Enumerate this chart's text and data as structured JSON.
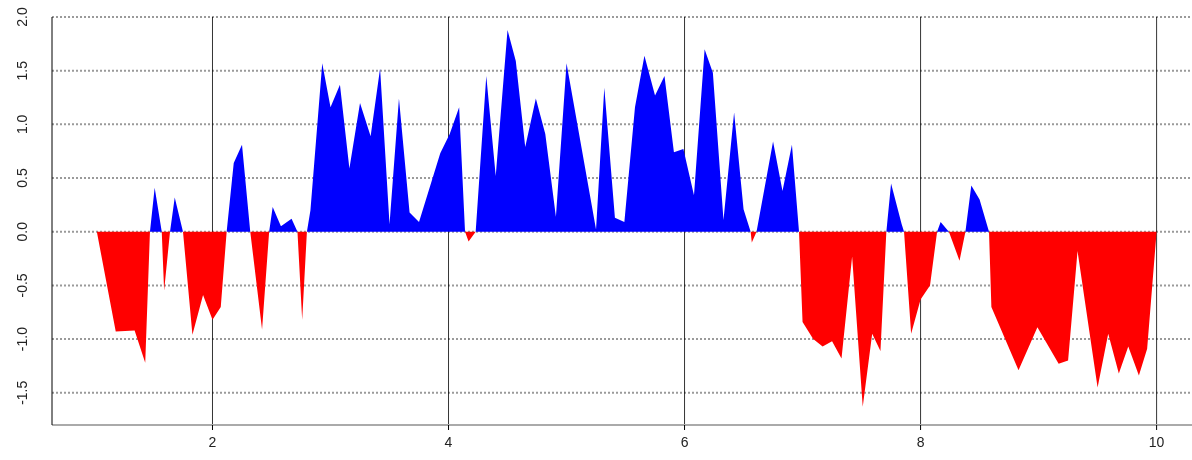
{
  "chart_data": {
    "type": "area",
    "x": [
      1.02,
      1.18,
      1.34,
      1.43,
      1.47,
      1.51,
      1.57,
      1.59,
      1.64,
      1.68,
      1.75,
      1.83,
      1.92,
      2.0,
      2.07,
      2.12,
      2.18,
      2.25,
      2.32,
      2.42,
      2.48,
      2.51,
      2.58,
      2.67,
      2.72,
      2.76,
      2.8,
      2.83,
      2.93,
      3.0,
      3.08,
      3.16,
      3.25,
      3.34,
      3.42,
      3.5,
      3.58,
      3.67,
      3.75,
      3.93,
      4.01,
      4.09,
      4.14,
      4.17,
      4.23,
      4.32,
      4.4,
      4.5,
      4.57,
      4.65,
      4.74,
      4.82,
      4.91,
      5.0,
      5.25,
      5.32,
      5.41,
      5.49,
      5.58,
      5.66,
      5.75,
      5.83,
      5.91,
      5.99,
      6.08,
      6.17,
      6.24,
      6.33,
      6.42,
      6.5,
      6.56,
      6.57,
      6.61,
      6.75,
      6.83,
      6.91,
      6.97,
      7.0,
      7.09,
      7.17,
      7.25,
      7.33,
      7.42,
      7.51,
      7.59,
      7.66,
      7.71,
      7.75,
      7.84,
      7.86,
      7.92,
      8.0,
      8.08,
      8.14,
      8.17,
      8.24,
      8.33,
      8.38,
      8.43,
      8.5,
      8.58,
      8.6,
      8.83,
      8.99,
      9.17,
      9.25,
      9.33,
      9.5,
      9.59,
      9.68,
      9.76,
      9.85,
      9.92,
      10.0
    ],
    "series": [
      {
        "color": "#0000ff",
        "values": [
          0,
          0,
          0,
          0,
          0,
          0.41,
          0,
          0,
          0,
          0.32,
          0,
          0,
          0,
          0,
          0,
          0,
          0.64,
          0.81,
          0,
          0,
          0,
          0.23,
          0.05,
          0.12,
          0,
          0,
          0,
          0.2,
          1.57,
          1.16,
          1.37,
          0.59,
          1.2,
          0.89,
          1.52,
          0.07,
          1.24,
          0.18,
          0.09,
          0.73,
          0.91,
          1.16,
          0,
          0,
          0,
          1.45,
          0.52,
          1.88,
          1.59,
          0.79,
          1.24,
          0.91,
          0.14,
          1.57,
          0.02,
          1.34,
          0.13,
          0.09,
          1.16,
          1.64,
          1.27,
          1.45,
          0.74,
          0.77,
          0.34,
          1.7,
          1.48,
          0.11,
          1.11,
          0.21,
          0,
          0,
          0,
          0.84,
          0.38,
          0.81,
          0,
          0,
          0,
          0,
          0,
          0,
          0,
          0,
          0,
          0,
          0,
          0.45,
          0.07,
          0,
          0,
          0,
          0,
          0,
          0.09,
          0,
          0,
          0,
          0.43,
          0.3,
          0,
          0,
          0,
          0,
          0,
          0,
          0,
          0,
          0,
          0,
          0,
          0,
          0,
          0
        ]
      },
      {
        "color": "#ff0000",
        "values": [
          0,
          -0.93,
          -0.92,
          -1.22,
          0,
          0,
          0,
          -0.55,
          0,
          0,
          0,
          -0.96,
          -0.59,
          -0.82,
          -0.7,
          0,
          0,
          0,
          0,
          -0.91,
          0,
          0,
          0,
          0,
          0,
          -0.82,
          0,
          0,
          0,
          0,
          0,
          0,
          0,
          0,
          0,
          0,
          0,
          0,
          0,
          0,
          0,
          0,
          0,
          -0.09,
          0,
          0,
          0,
          0,
          0,
          0,
          0,
          0,
          0,
          0,
          0,
          0,
          0,
          0,
          0,
          0,
          0,
          0,
          0,
          0,
          0,
          0,
          0,
          0,
          0,
          0,
          0,
          -0.1,
          0,
          0,
          0,
          0,
          0,
          -0.84,
          -1.0,
          -1.07,
          -1.02,
          -1.18,
          -0.23,
          -1.63,
          -0.95,
          -1.11,
          0,
          0,
          0,
          0,
          -0.95,
          -0.63,
          -0.5,
          0,
          0,
          0,
          -0.27,
          0,
          0,
          0,
          0,
          -0.7,
          -1.29,
          -0.89,
          -1.23,
          -1.2,
          -0.18,
          -1.45,
          -0.95,
          -1.32,
          -1.07,
          -1.34,
          -1.09,
          0
        ]
      }
    ],
    "xlim": [
      0.64,
      10.3
    ],
    "xticks": [
      2,
      4,
      6,
      8,
      10
    ],
    "ylim": [
      -1.8,
      2.0
    ],
    "yticks": [
      {
        "value": -1.5,
        "label": "-1.5"
      },
      {
        "value": -1.0,
        "label": "-1.0"
      },
      {
        "value": -0.5,
        "label": "-0.5"
      },
      {
        "value": 0,
        "label": "0.0"
      },
      {
        "value": 0.5,
        "label": "0.5"
      },
      {
        "value": 1.0,
        "label": "1.0"
      },
      {
        "value": 1.5,
        "label": "1.5"
      },
      {
        "value": 2.0,
        "label": "2.0"
      }
    ],
    "grid": true
  }
}
